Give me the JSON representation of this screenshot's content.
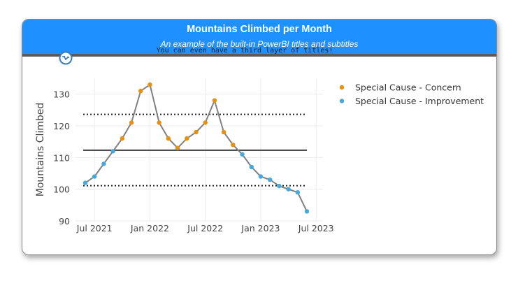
{
  "title": "Mountains Climbed per Month",
  "subtitle": "An example of the built-in PowerBI titles and subtitles",
  "third_title": "You can even have a third layer of titles!",
  "icon": "spc-logo-icon",
  "colors": {
    "line": "#808080",
    "concern": "#e8900c",
    "improvement": "#4aa8d8",
    "limit": "#222222",
    "header": "#1e90ff"
  },
  "chart_data": {
    "type": "line",
    "ylabel": "Mountains Climbed",
    "xlabel": "",
    "ylim": [
      90,
      135
    ],
    "yticks": [
      90,
      100,
      110,
      120,
      130
    ],
    "xtick_labels": [
      "Jul 2021",
      "Jan 2022",
      "Jul 2022",
      "Jan 2023",
      "Jul 2023"
    ],
    "x": [
      "2021-06",
      "2021-07",
      "2021-08",
      "2021-09",
      "2021-10",
      "2021-11",
      "2021-12",
      "2022-01",
      "2022-02",
      "2022-03",
      "2022-04",
      "2022-05",
      "2022-06",
      "2022-07",
      "2022-08",
      "2022-09",
      "2022-10",
      "2022-11",
      "2022-12",
      "2023-01",
      "2023-02",
      "2023-03",
      "2023-04",
      "2023-05",
      "2023-06"
    ],
    "values": [
      102,
      104,
      108,
      112,
      116,
      121,
      131,
      133,
      121,
      116,
      113,
      116,
      118,
      121,
      128,
      118,
      114,
      111,
      107,
      104,
      103,
      101,
      100,
      99,
      93
    ],
    "point_status": [
      "improvement",
      "improvement",
      "improvement",
      "improvement",
      "concern",
      "concern",
      "concern",
      "concern",
      "concern",
      "concern",
      "concern",
      "concern",
      "concern",
      "concern",
      "concern",
      "concern",
      "concern",
      "improvement",
      "improvement",
      "improvement",
      "improvement",
      "improvement",
      "improvement",
      "improvement",
      "improvement"
    ],
    "center_line": 112.3,
    "upper_limit": 123.6,
    "lower_limit": 101.1,
    "legend": [
      {
        "name": "Special Cause - Concern",
        "status": "concern"
      },
      {
        "name": "Special Cause - Improvement",
        "status": "improvement"
      }
    ],
    "legend_position": "top-right",
    "grid": true
  }
}
